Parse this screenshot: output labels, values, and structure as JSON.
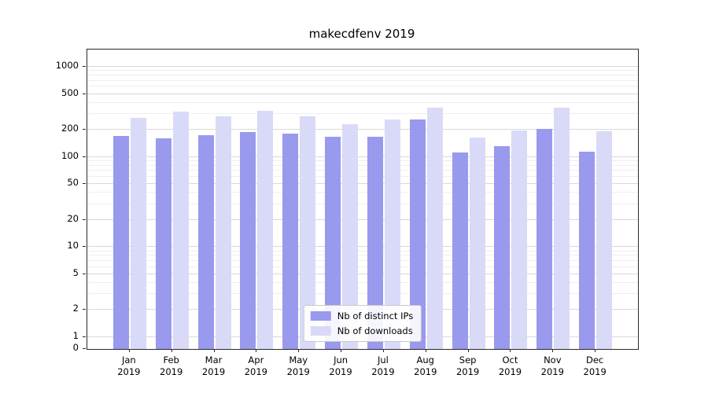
{
  "chart_data": {
    "type": "bar",
    "title": "makecdfenv 2019",
    "categories": [
      "Jan",
      "Feb",
      "Mar",
      "Apr",
      "May",
      "Jun",
      "Jul",
      "Aug",
      "Sep",
      "Oct",
      "Nov",
      "Dec"
    ],
    "year_label": "2019",
    "series": [
      {
        "name": "Nb of distinct IPs",
        "color": "#9999ee",
        "values": [
          170,
          160,
          175,
          190,
          182,
          168,
          167,
          262,
          113,
          133,
          204,
          114
        ]
      },
      {
        "name": "Nb of downloads",
        "color": "#d9d9f8",
        "values": [
          270,
          320,
          280,
          325,
          285,
          230,
          260,
          355,
          165,
          198,
          350,
          193
        ]
      }
    ],
    "yticks": [
      0,
      1,
      2,
      5,
      10,
      20,
      50,
      100,
      200,
      500,
      1000
    ],
    "yscale": "log",
    "ylim": [
      0,
      1560
    ],
    "grid": true,
    "legend_position": "lower center"
  }
}
